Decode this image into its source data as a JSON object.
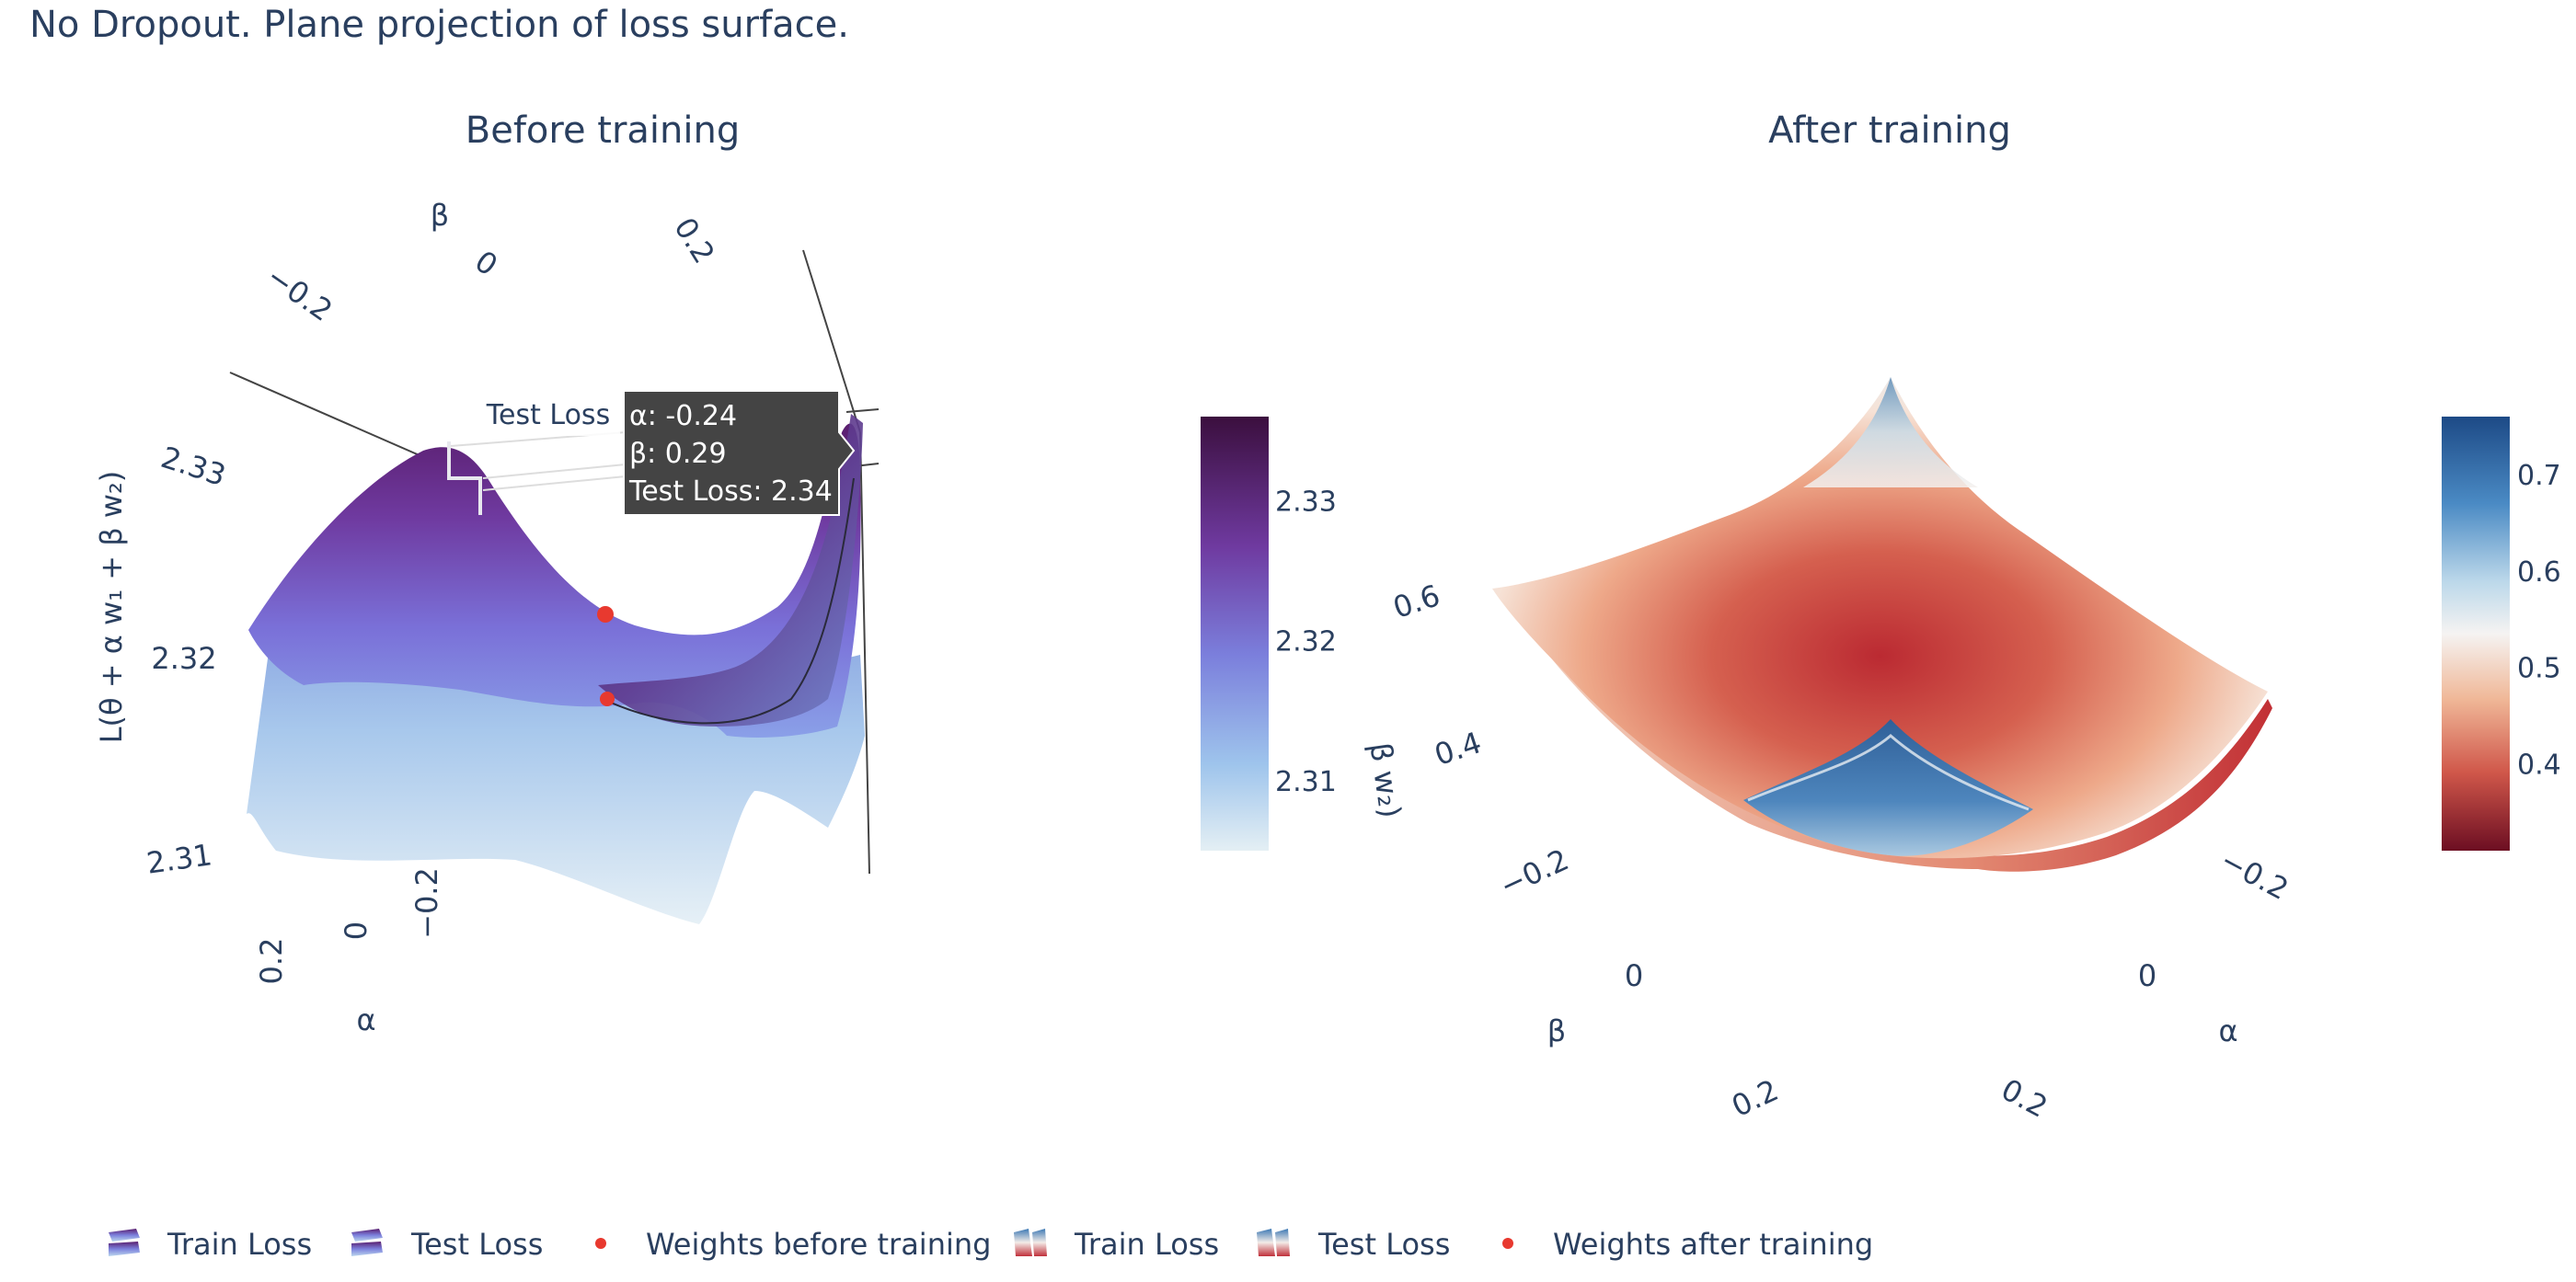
{
  "page": {
    "title": "No Dropout. Plane projection of loss surface."
  },
  "chart_data": [
    {
      "type": "surface3d",
      "title": "Before training",
      "axes": {
        "x_label": "α",
        "y_label": "β",
        "z_label": "L(θ + α w₁ + β w₂)",
        "x_ticks": [
          "0.2",
          "0",
          "−0.2"
        ],
        "y_ticks": [
          "−0.2",
          "0",
          "0.2"
        ],
        "z_ticks": [
          "2.33",
          "2.32",
          "2.31"
        ]
      },
      "colorscale": "BuPu",
      "colorbar": {
        "ticks": [
          2.33,
          2.32,
          2.31
        ],
        "range": [
          2.305,
          2.336
        ]
      },
      "series": [
        {
          "name": "Train Loss"
        },
        {
          "name": "Test Loss"
        },
        {
          "name": "Weights before training",
          "marker_color": "#e8392f"
        }
      ],
      "hover": {
        "trace": "Test Loss",
        "alpha_text": "α: -0.24",
        "beta_text": "β: 0.29",
        "loss_text": "Test Loss: 2.34"
      }
    },
    {
      "type": "surface3d",
      "title": "After training",
      "axes": {
        "x_label": "α",
        "y_label": "β",
        "z_label_fragment": "β w₂)",
        "x_ticks": [
          "−0.2",
          "0",
          "0.2"
        ],
        "y_ticks": [
          "−0.2",
          "0",
          "0.2"
        ],
        "z_ticks": [
          "0.6",
          "0.4"
        ]
      },
      "colorscale": "RdBu",
      "colorbar": {
        "ticks": [
          0.7,
          0.6,
          0.5,
          0.4
        ],
        "range": [
          0.31,
          0.76
        ]
      },
      "series": [
        {
          "name": "Train Loss"
        },
        {
          "name": "Test Loss"
        },
        {
          "name": "Weights after training",
          "marker_color": "#e8392f"
        }
      ]
    }
  ],
  "legend": {
    "items": [
      {
        "label": "Train Loss",
        "icon": "bupu-surface-swatch"
      },
      {
        "label": "Test Loss",
        "icon": "bupu-surface-swatch"
      },
      {
        "label": "Weights before training",
        "icon": "red-dot"
      },
      {
        "label": "Train Loss",
        "icon": "rdbu-surface-swatch"
      },
      {
        "label": "Test Loss",
        "icon": "rdbu-surface-swatch"
      },
      {
        "label": "Weights after training",
        "icon": "red-dot"
      }
    ]
  },
  "colors": {
    "text": "#2a3f5f",
    "marker": "#e8392f",
    "hover_bg": "#444444"
  }
}
